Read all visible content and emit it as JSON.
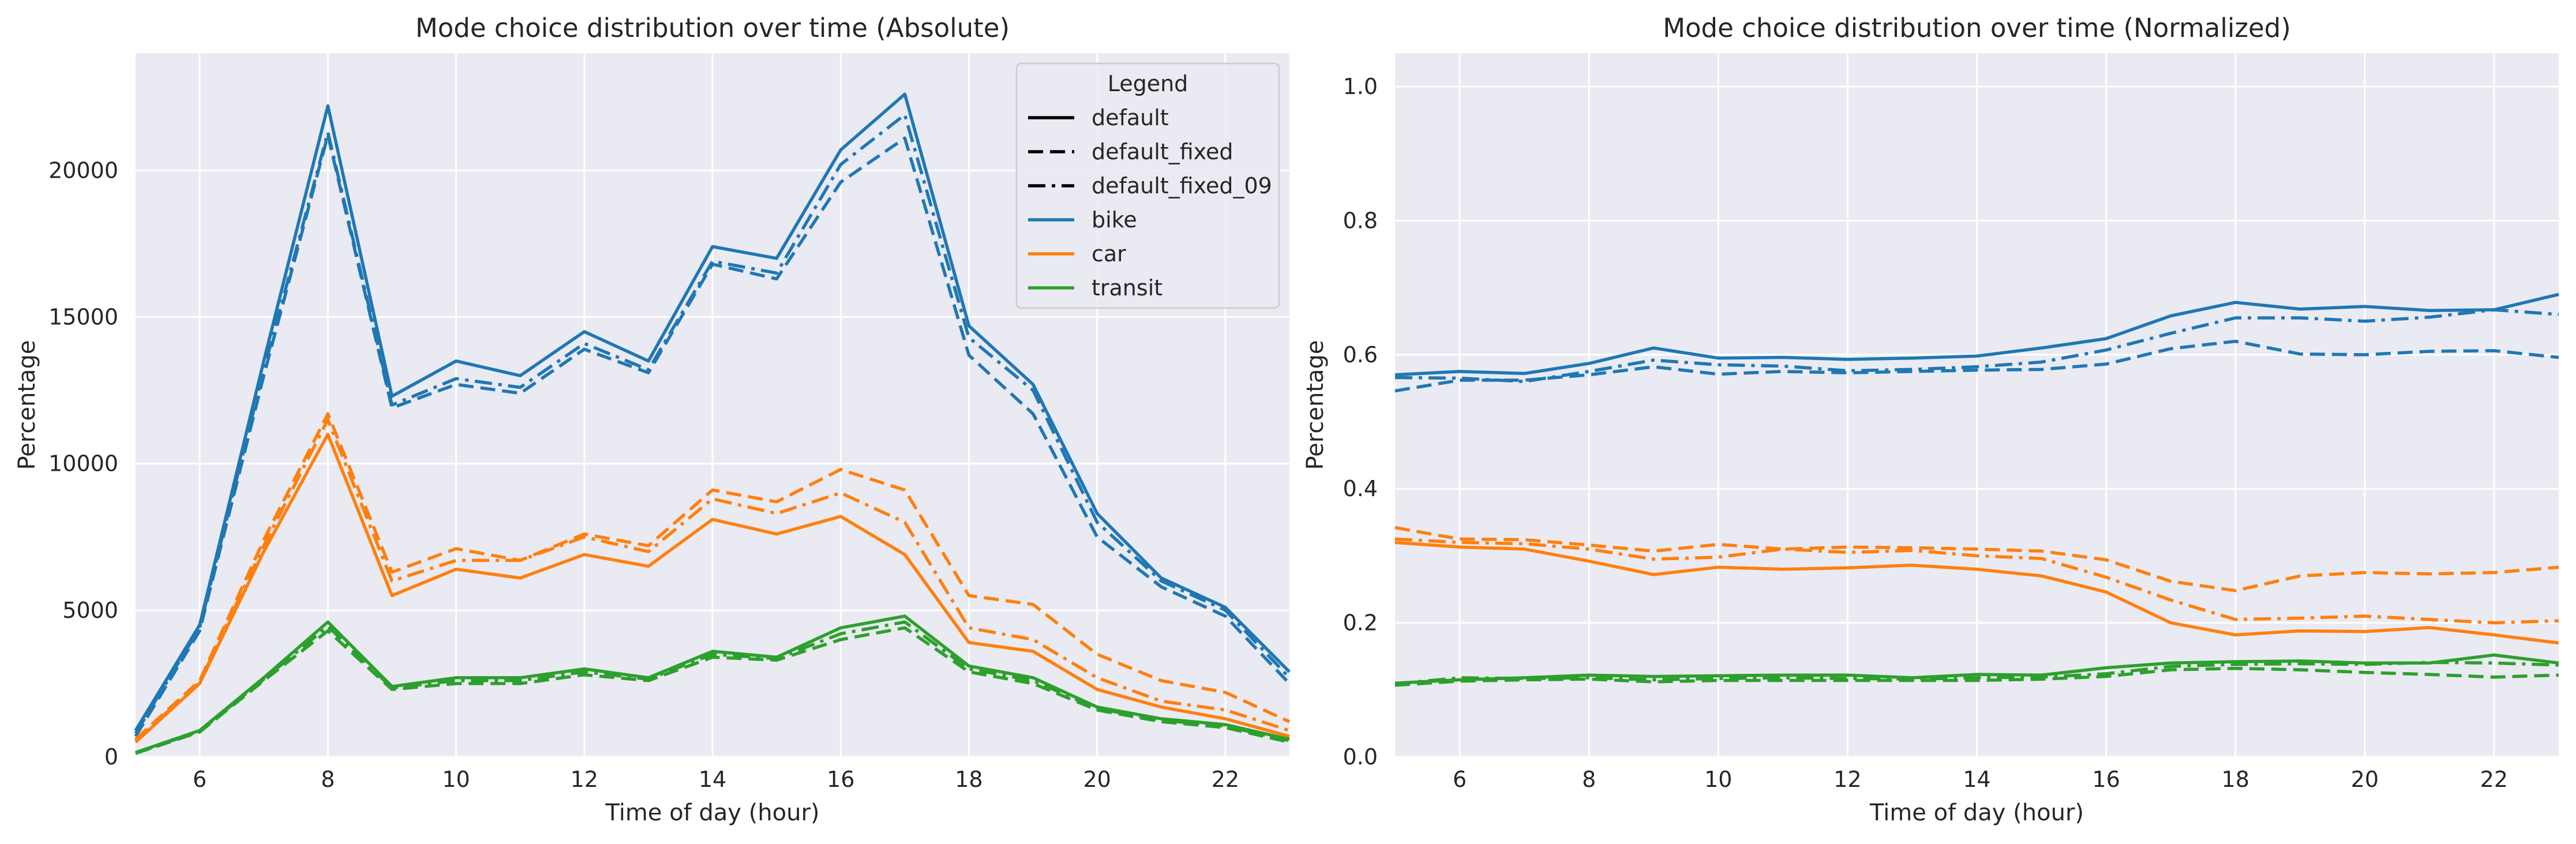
{
  "colors": {
    "bike": "#1f77b4",
    "car": "#ff7f0e",
    "transit": "#2ca02c",
    "plot_bg": "#eaeaf2",
    "grid": "#ffffff",
    "text": "#262626"
  },
  "legend": {
    "title": "Legend",
    "placement": "upper-right",
    "entries": [
      {
        "label": "default",
        "kind": "style",
        "dash": "solid"
      },
      {
        "label": "default_fixed",
        "kind": "style",
        "dash": "dashed"
      },
      {
        "label": "default_fixed_09",
        "kind": "style",
        "dash": "dashdot"
      },
      {
        "label": "bike",
        "kind": "color",
        "color": "#1f77b4"
      },
      {
        "label": "car",
        "kind": "color",
        "color": "#ff7f0e"
      },
      {
        "label": "transit",
        "kind": "color",
        "color": "#2ca02c"
      }
    ]
  },
  "chart_data": [
    {
      "type": "line",
      "title": "Mode choice distribution over time (Absolute)",
      "xlabel": "Time of day (hour)",
      "ylabel": "Percentage",
      "xlim": [
        5,
        23
      ],
      "ylim": [
        0,
        24000
      ],
      "xticks": [
        6,
        8,
        10,
        12,
        14,
        16,
        18,
        20,
        22
      ],
      "yticks": [
        0,
        5000,
        10000,
        15000,
        20000
      ],
      "grid": true,
      "x": [
        5,
        6,
        7,
        8,
        9,
        10,
        11,
        12,
        13,
        14,
        15,
        16,
        17,
        18,
        19,
        20,
        21,
        22,
        23
      ],
      "series": [
        {
          "name": "bike",
          "style": "default",
          "values": [
            900,
            4500,
            13500,
            22200,
            12300,
            13500,
            13000,
            14500,
            13500,
            17400,
            17000,
            20700,
            22600,
            14700,
            12700,
            8300,
            6100,
            5100,
            2900
          ]
        },
        {
          "name": "bike",
          "style": "default_fixed",
          "values": [
            700,
            4300,
            13000,
            21200,
            11900,
            12700,
            12400,
            13900,
            13100,
            16800,
            16300,
            19600,
            21100,
            13700,
            11700,
            7500,
            5800,
            4800,
            2500
          ]
        },
        {
          "name": "bike",
          "style": "default_fixed_09",
          "values": [
            800,
            4400,
            13200,
            21300,
            12000,
            12900,
            12600,
            14100,
            13200,
            16900,
            16500,
            20200,
            21900,
            14300,
            12500,
            8000,
            6000,
            5000,
            2700
          ]
        },
        {
          "name": "car",
          "style": "default",
          "values": [
            500,
            2500,
            7000,
            11000,
            5500,
            6400,
            6100,
            6900,
            6500,
            8100,
            7600,
            8200,
            6900,
            3900,
            3600,
            2300,
            1700,
            1300,
            700
          ]
        },
        {
          "name": "car",
          "style": "default_fixed",
          "values": [
            600,
            2600,
            7400,
            11700,
            6300,
            7100,
            6700,
            7600,
            7200,
            9100,
            8700,
            9800,
            9100,
            5500,
            5200,
            3500,
            2600,
            2200,
            1200
          ]
        },
        {
          "name": "car",
          "style": "default_fixed_09",
          "values": [
            550,
            2550,
            7200,
            11500,
            6000,
            6700,
            6700,
            7500,
            7000,
            8800,
            8300,
            9000,
            8000,
            4400,
            4000,
            2700,
            1900,
            1600,
            900
          ]
        },
        {
          "name": "transit",
          "style": "default",
          "values": [
            150,
            900,
            2700,
            4600,
            2400,
            2700,
            2700,
            3000,
            2700,
            3600,
            3400,
            4400,
            4800,
            3100,
            2700,
            1700,
            1300,
            1100,
            600
          ]
        },
        {
          "name": "transit",
          "style": "default_fixed",
          "values": [
            120,
            850,
            2600,
            4300,
            2300,
            2500,
            2500,
            2800,
            2600,
            3400,
            3300,
            4000,
            4400,
            2900,
            2500,
            1600,
            1200,
            1000,
            500
          ]
        },
        {
          "name": "transit",
          "style": "default_fixed_09",
          "values": [
            130,
            880,
            2650,
            4450,
            2350,
            2600,
            2600,
            2900,
            2650,
            3500,
            3350,
            4200,
            4600,
            3000,
            2600,
            1650,
            1250,
            1050,
            550
          ]
        }
      ]
    },
    {
      "type": "line",
      "title": "Mode choice distribution over time (Normalized)",
      "xlabel": "Time of day (hour)",
      "ylabel": "Percentage",
      "xlim": [
        5,
        23
      ],
      "ylim": [
        0,
        1.05
      ],
      "xticks": [
        6,
        8,
        10,
        12,
        14,
        16,
        18,
        20,
        22
      ],
      "yticks": [
        0.0,
        0.2,
        0.4,
        0.6,
        0.8,
        1.0
      ],
      "ytick_labels": [
        "0.0",
        "0.2",
        "0.4",
        "0.6",
        "0.8",
        "1.0"
      ],
      "grid": true,
      "x": [
        5,
        6,
        7,
        8,
        9,
        10,
        11,
        12,
        13,
        14,
        15,
        16,
        17,
        18,
        19,
        20,
        21,
        22,
        23
      ],
      "series": [
        {
          "name": "bike",
          "style": "default",
          "values": [
            0.57,
            0.575,
            0.572,
            0.587,
            0.61,
            0.595,
            0.596,
            0.593,
            0.595,
            0.598,
            0.61,
            0.624,
            0.658,
            0.678,
            0.668,
            0.672,
            0.666,
            0.667,
            0.69
          ]
        },
        {
          "name": "bike",
          "style": "default_fixed",
          "values": [
            0.546,
            0.562,
            0.562,
            0.57,
            0.582,
            0.571,
            0.575,
            0.573,
            0.575,
            0.577,
            0.578,
            0.586,
            0.609,
            0.62,
            0.601,
            0.6,
            0.605,
            0.606,
            0.596
          ]
        },
        {
          "name": "bike",
          "style": "default_fixed_09",
          "values": [
            0.566,
            0.565,
            0.56,
            0.575,
            0.592,
            0.585,
            0.583,
            0.576,
            0.578,
            0.582,
            0.589,
            0.607,
            0.632,
            0.655,
            0.655,
            0.65,
            0.656,
            0.667,
            0.66
          ]
        },
        {
          "name": "car",
          "style": "default",
          "values": [
            0.32,
            0.313,
            0.31,
            0.292,
            0.272,
            0.283,
            0.28,
            0.282,
            0.286,
            0.28,
            0.27,
            0.246,
            0.2,
            0.182,
            0.188,
            0.187,
            0.193,
            0.182,
            0.17
          ]
        },
        {
          "name": "car",
          "style": "default_fixed",
          "values": [
            0.342,
            0.325,
            0.324,
            0.316,
            0.307,
            0.317,
            0.31,
            0.313,
            0.312,
            0.31,
            0.307,
            0.294,
            0.262,
            0.248,
            0.27,
            0.275,
            0.273,
            0.275,
            0.283
          ]
        },
        {
          "name": "car",
          "style": "default_fixed_09",
          "values": [
            0.325,
            0.32,
            0.318,
            0.31,
            0.295,
            0.298,
            0.31,
            0.305,
            0.308,
            0.3,
            0.296,
            0.268,
            0.234,
            0.205,
            0.207,
            0.21,
            0.205,
            0.2,
            0.203
          ]
        },
        {
          "name": "transit",
          "style": "default",
          "values": [
            0.11,
            0.115,
            0.118,
            0.122,
            0.12,
            0.121,
            0.122,
            0.122,
            0.118,
            0.123,
            0.122,
            0.133,
            0.14,
            0.142,
            0.143,
            0.14,
            0.14,
            0.152,
            0.14
          ]
        },
        {
          "name": "transit",
          "style": "default_fixed",
          "values": [
            0.107,
            0.113,
            0.115,
            0.116,
            0.112,
            0.114,
            0.114,
            0.114,
            0.114,
            0.114,
            0.116,
            0.12,
            0.13,
            0.132,
            0.13,
            0.126,
            0.123,
            0.119,
            0.122
          ]
        },
        {
          "name": "transit",
          "style": "default_fixed_09",
          "values": [
            0.109,
            0.118,
            0.117,
            0.118,
            0.115,
            0.117,
            0.118,
            0.117,
            0.116,
            0.118,
            0.119,
            0.124,
            0.135,
            0.138,
            0.139,
            0.138,
            0.141,
            0.14,
            0.137
          ]
        }
      ]
    }
  ]
}
